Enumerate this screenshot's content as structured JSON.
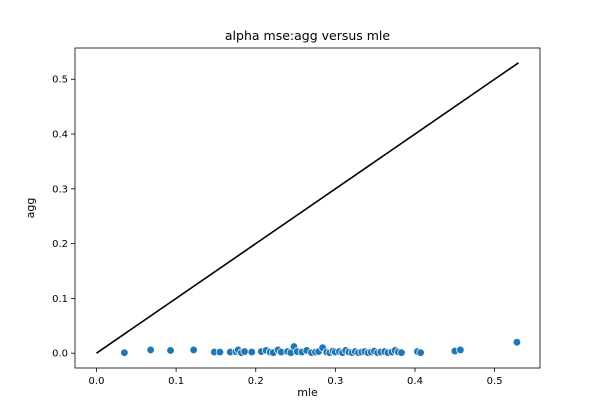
{
  "chart_data": {
    "type": "scatter",
    "title": "alpha mse:agg versus mle",
    "xlabel": "mle",
    "ylabel": "agg",
    "xlim": [
      -0.027,
      0.557
    ],
    "ylim": [
      -0.027,
      0.557
    ],
    "x_ticks": [
      0.0,
      0.1,
      0.2,
      0.3,
      0.4,
      0.5
    ],
    "x_tick_labels": [
      "0.0",
      "0.1",
      "0.2",
      "0.3",
      "0.4",
      "0.5"
    ],
    "y_ticks": [
      0.0,
      0.1,
      0.2,
      0.3,
      0.4,
      0.5
    ],
    "y_tick_labels": [
      "0.0",
      "0.1",
      "0.2",
      "0.3",
      "0.4",
      "0.5"
    ],
    "grid": false,
    "reference_line": {
      "x": [
        0.0,
        0.53
      ],
      "y": [
        0.0,
        0.53
      ],
      "color": "#000000"
    },
    "series": [
      {
        "color": "#1f77b4",
        "points": [
          [
            0.035,
            0.001
          ],
          [
            0.068,
            0.006
          ],
          [
            0.093,
            0.005
          ],
          [
            0.122,
            0.006
          ],
          [
            0.148,
            0.002
          ],
          [
            0.155,
            0.002
          ],
          [
            0.168,
            0.002
          ],
          [
            0.175,
            0.003
          ],
          [
            0.178,
            0.006
          ],
          [
            0.182,
            0.001
          ],
          [
            0.186,
            0.003
          ],
          [
            0.195,
            0.002
          ],
          [
            0.207,
            0.003
          ],
          [
            0.213,
            0.005
          ],
          [
            0.218,
            0.002
          ],
          [
            0.222,
            0.001
          ],
          [
            0.228,
            0.006
          ],
          [
            0.232,
            0.002
          ],
          [
            0.24,
            0.003
          ],
          [
            0.244,
            0.001
          ],
          [
            0.248,
            0.012
          ],
          [
            0.252,
            0.003
          ],
          [
            0.258,
            0.002
          ],
          [
            0.264,
            0.005
          ],
          [
            0.27,
            0.001
          ],
          [
            0.275,
            0.002
          ],
          [
            0.279,
            0.003
          ],
          [
            0.284,
            0.01
          ],
          [
            0.289,
            0.002
          ],
          [
            0.293,
            0.001
          ],
          [
            0.297,
            0.004
          ],
          [
            0.3,
            0.002
          ],
          [
            0.305,
            0.003
          ],
          [
            0.309,
            0.001
          ],
          [
            0.313,
            0.005
          ],
          [
            0.317,
            0.002
          ],
          [
            0.321,
            0.001
          ],
          [
            0.325,
            0.003
          ],
          [
            0.329,
            0.001
          ],
          [
            0.333,
            0.002
          ],
          [
            0.337,
            0.003
          ],
          [
            0.341,
            0.001
          ],
          [
            0.345,
            0.002
          ],
          [
            0.349,
            0.004
          ],
          [
            0.353,
            0.001
          ],
          [
            0.357,
            0.002
          ],
          [
            0.362,
            0.003
          ],
          [
            0.366,
            0.001
          ],
          [
            0.371,
            0.002
          ],
          [
            0.375,
            0.005
          ],
          [
            0.379,
            0.002
          ],
          [
            0.383,
            0.001
          ],
          [
            0.403,
            0.003
          ],
          [
            0.407,
            0.001
          ],
          [
            0.45,
            0.004
          ],
          [
            0.457,
            0.006
          ],
          [
            0.528,
            0.02
          ]
        ]
      }
    ]
  }
}
